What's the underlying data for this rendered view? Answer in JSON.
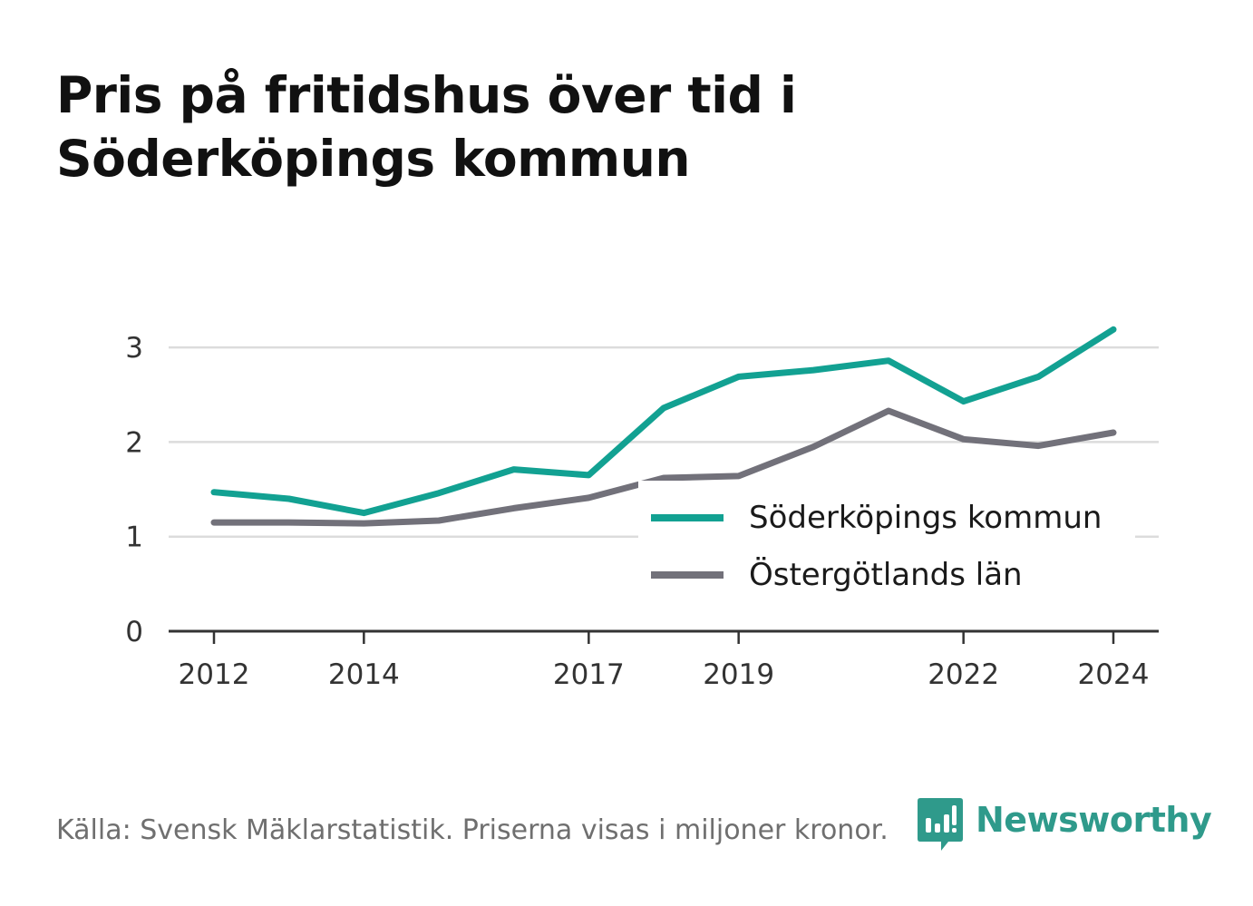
{
  "title": {
    "line1": "Pris på fritidshus över tid i",
    "line2": "Söderköpings kommun"
  },
  "footer": {
    "source": "Källa: Svensk Mäklarstatistik. Priserna visas i miljoner kronor.",
    "brand": "Newsworthy",
    "brand_color": "#2f9a8b",
    "brand_icon": "bar-chart-speech-bubble-icon"
  },
  "chart_data": {
    "type": "line",
    "x": [
      2012,
      2013,
      2014,
      2015,
      2016,
      2017,
      2018,
      2019,
      2020,
      2021,
      2022,
      2023,
      2024
    ],
    "x_ticks": [
      "2012",
      "2014",
      "2017",
      "2019",
      "2022",
      "2024"
    ],
    "y_ticks": [
      "0",
      "1",
      "2",
      "3"
    ],
    "ylim": [
      0,
      3.3
    ],
    "grid": true,
    "legend_position": "bottom-right",
    "series": [
      {
        "name": "Söderköpings kommun",
        "color": "#12a192",
        "values": [
          1.47,
          1.4,
          1.25,
          1.46,
          1.71,
          1.65,
          2.36,
          2.69,
          2.76,
          2.86,
          2.43,
          2.69,
          3.19
        ]
      },
      {
        "name": "Östergötlands län",
        "color": "#72717a",
        "values": [
          1.15,
          1.15,
          1.14,
          1.17,
          1.3,
          1.41,
          1.62,
          1.64,
          1.95,
          2.33,
          2.03,
          1.96,
          2.1
        ]
      }
    ]
  }
}
